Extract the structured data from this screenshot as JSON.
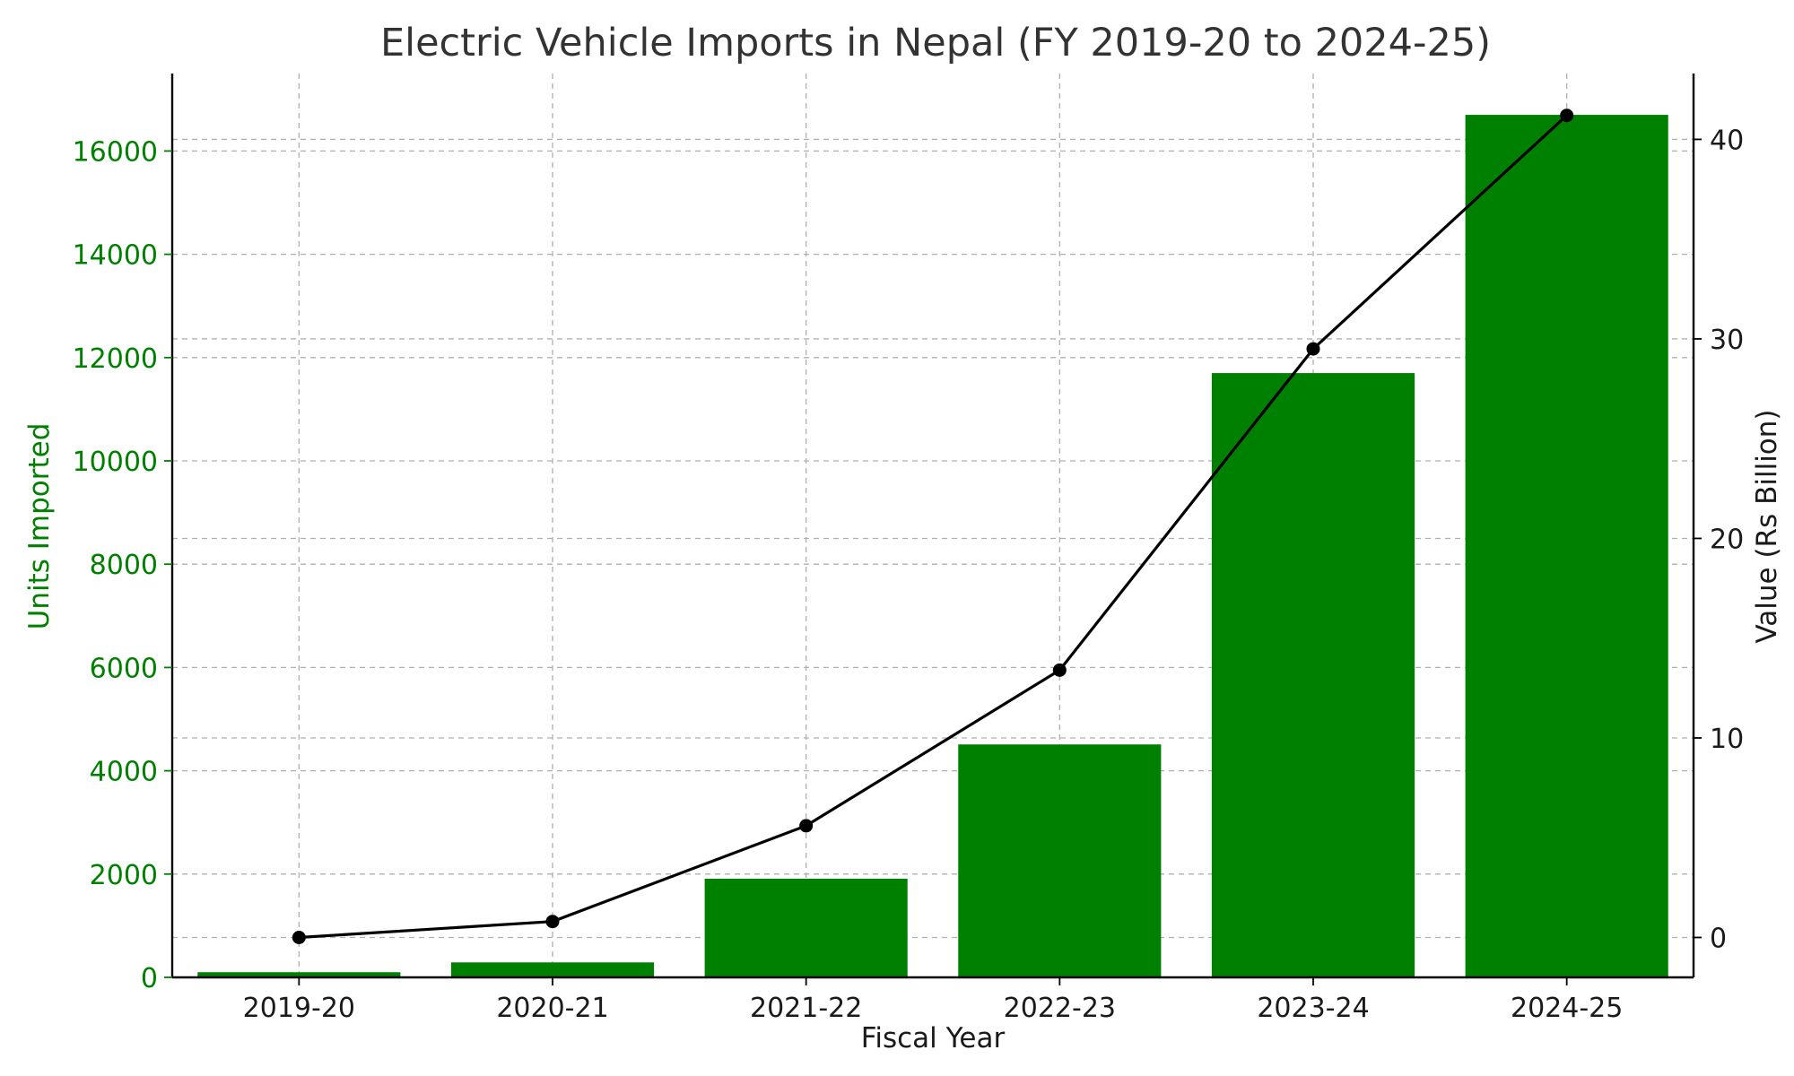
{
  "chart_data": {
    "type": "bar",
    "title": "Electric Vehicle Imports in Nepal (FY 2019-20 to 2024-25)",
    "xlabel": "Fiscal Year",
    "ylabel": "Units Imported",
    "y2label": "Value (Rs Billion)",
    "categories": [
      "2019-20",
      "2020-21",
      "2021-22",
      "2022-23",
      "2023-24",
      "2024-25"
    ],
    "series": [
      {
        "name": "Units Imported",
        "type": "bar",
        "axis": "left",
        "color": "#008000",
        "values": [
          100,
          290,
          1910,
          4510,
          11700,
          16700
        ]
      },
      {
        "name": "Value (Rs Billion)",
        "type": "line",
        "axis": "right",
        "color": "#000000",
        "values": [
          0.0,
          0.8,
          5.6,
          13.4,
          29.5,
          41.2
        ]
      }
    ],
    "ylim": [
      0,
      17500
    ],
    "y2lim": [
      -2,
      43.3
    ],
    "yticks": [
      0,
      2000,
      4000,
      6000,
      8000,
      10000,
      12000,
      14000,
      16000
    ],
    "y2ticks": [
      0,
      10,
      20,
      30,
      40
    ],
    "grid": true,
    "left_axis_color": "#008000",
    "right_axis_color": "#000000"
  }
}
